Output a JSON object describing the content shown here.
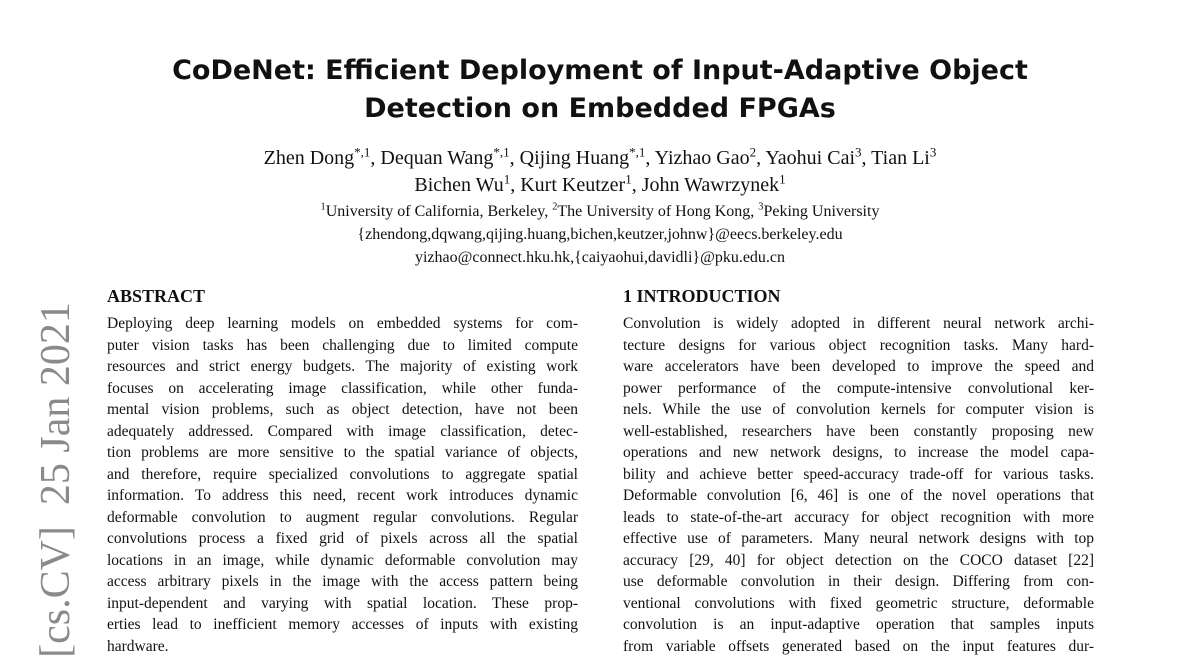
{
  "sidebar": "[cs.CV]  25 Jan 2021",
  "title": [
    "CoDeNet: Efficient Deployment of Input-Adaptive Object",
    "Detection on Embedded FPGAs"
  ],
  "authors": [
    [
      {
        "name": "Zhen Dong",
        "sup": "*,1"
      },
      {
        "name": ", Dequan Wang",
        "sup": "*,1"
      },
      {
        "name": ", Qijing Huang",
        "sup": "*,1"
      },
      {
        "name": ", Yizhao Gao",
        "sup": "2"
      },
      {
        "name": ", Yaohui Cai",
        "sup": "3"
      },
      {
        "name": ", Tian Li",
        "sup": "3"
      }
    ],
    [
      {
        "name": "Bichen Wu",
        "sup": "1"
      },
      {
        "name": ", Kurt Keutzer",
        "sup": "1"
      },
      {
        "name": ", John Wawrzynek",
        "sup": "1"
      }
    ]
  ],
  "affiliations": [
    {
      "sup": "1",
      "text": "University of California, Berkeley, "
    },
    {
      "sup": "2",
      "text": "The University of Hong Kong, "
    },
    {
      "sup": "3",
      "text": "Peking University"
    }
  ],
  "emails": [
    "{zhendong,dqwang,qijing.huang,bichen,keutzer,johnw}@eecs.berkeley.edu",
    "yizhao@connect.hku.hk,{caiyaohui,davidli}@pku.edu.cn"
  ],
  "abstract": {
    "heading": "ABSTRACT",
    "lines": [
      "Deploying deep learning models on embedded systems for com-",
      "puter vision tasks has been challenging due to limited compute",
      "resources and strict energy budgets. The majority of existing work",
      "focuses on accelerating image classification, while other funda-",
      "mental vision problems, such as object detection, have not been",
      "adequately addressed. Compared with image classification, detec-",
      "tion problems are more sensitive to the spatial variance of objects,",
      "and therefore, require specialized convolutions to aggregate spatial",
      "information. To address this need, recent work introduces dynamic",
      "deformable convolution to augment regular convolutions. Regular",
      "convolutions process a fixed grid of pixels across all the spatial",
      "locations in an image, while dynamic deformable convolution may",
      "access arbitrary pixels in the image with the access pattern being",
      "input-dependent and varying with spatial location. These prop-",
      "erties lead to inefficient memory accesses of inputs with existing",
      "hardware."
    ]
  },
  "introduction": {
    "heading": "1   INTRODUCTION",
    "lines": [
      "Convolution is widely adopted in different neural network archi-",
      "tecture designs for various object recognition tasks. Many hard-",
      "ware accelerators have been developed to improve the speed and",
      "power performance of the compute-intensive convolutional ker-",
      "nels. While the use of convolution kernels for computer vision is",
      "well-established, researchers have been constantly proposing new",
      "operations and new network designs, to increase the model capa-",
      "bility and achieve better speed-accuracy trade-off for various tasks.",
      "Deformable convolution [6, 46] is one of the novel operations that",
      "leads to state-of-the-art accuracy for object recognition with more",
      "effective use of parameters. Many neural network designs with top",
      "accuracy [29, 40] for object detection on the COCO dataset [22]",
      "use deformable convolution in their design. Differing from con-",
      "ventional convolutions with fixed geometric structure, deformable",
      "convolution is an input-adaptive operation that samples inputs",
      "from variable offsets generated based on the input features dur-"
    ]
  }
}
